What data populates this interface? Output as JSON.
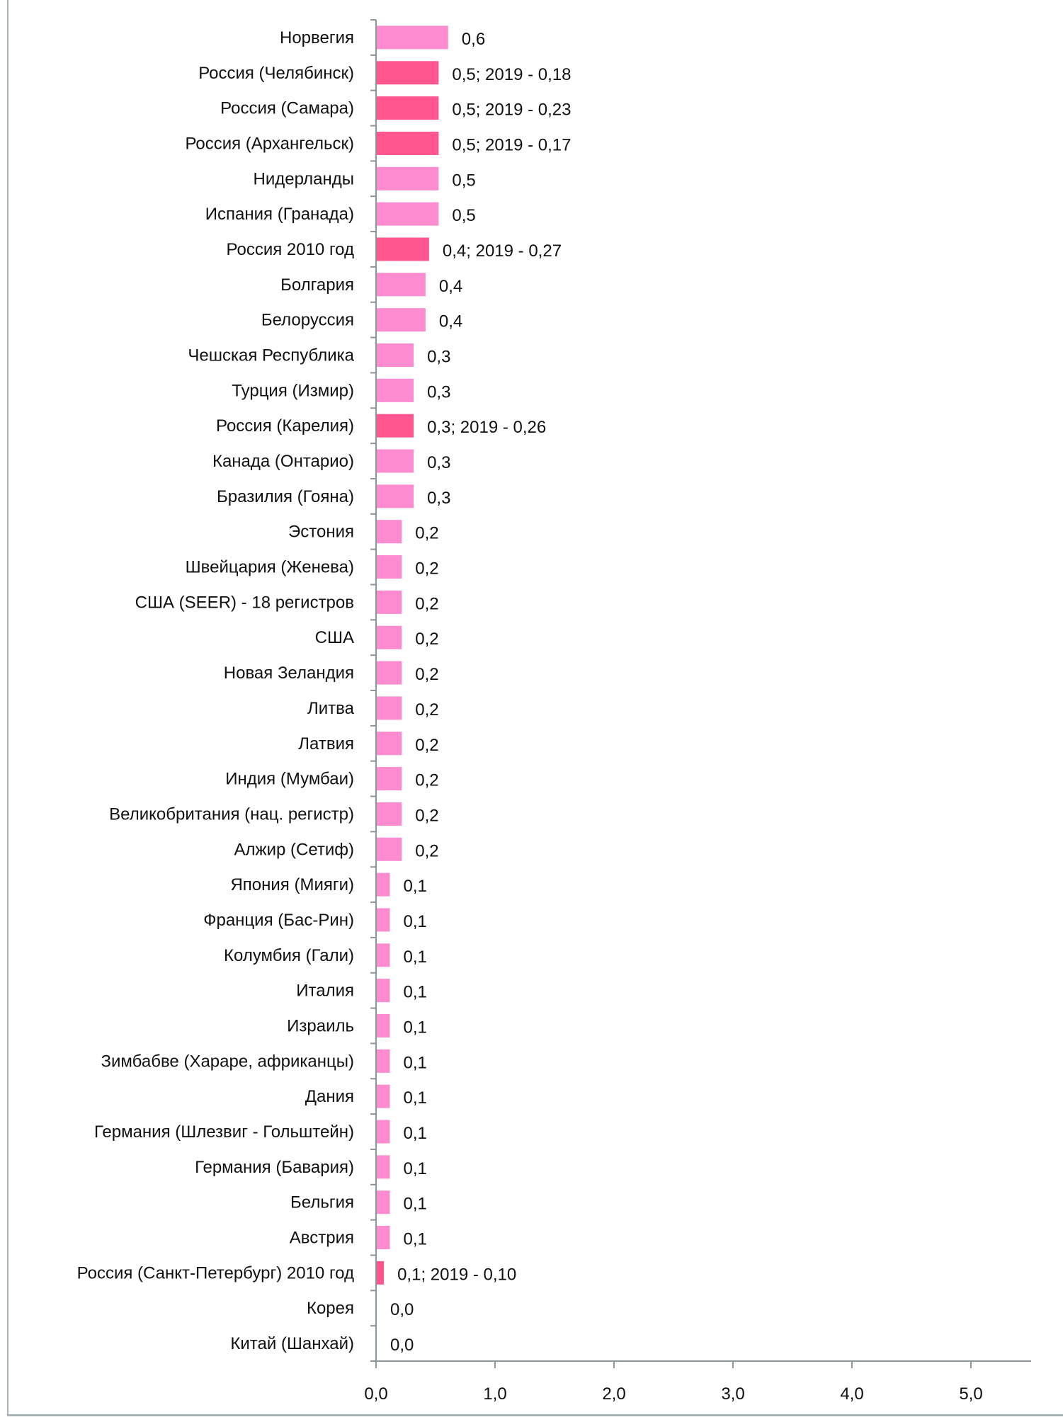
{
  "chart_data": {
    "type": "bar",
    "orientation": "horizontal",
    "title": "",
    "xlabel": "",
    "ylabel": "",
    "xlim": [
      0,
      5.5
    ],
    "xticks": [
      "0,0",
      "1,0",
      "2,0",
      "3,0",
      "4,0",
      "5,0"
    ],
    "grid": false,
    "colors": {
      "default": "#fd8bcf",
      "russia": "#ff5690"
    },
    "categories": [
      {
        "label": "Норвегия",
        "value": 0.6,
        "data_label": "0,6",
        "highlight": false
      },
      {
        "label": "Россия (Челябинск)",
        "value": 0.52,
        "data_label": "0,5; 2019 - 0,18",
        "highlight": true
      },
      {
        "label": "Россия (Самара)",
        "value": 0.52,
        "data_label": "0,5; 2019 - 0,23",
        "highlight": true
      },
      {
        "label": "Россия (Архангельск)",
        "value": 0.52,
        "data_label": "0,5; 2019 - 0,17",
        "highlight": true
      },
      {
        "label": "Нидерланды",
        "value": 0.52,
        "data_label": "0,5",
        "highlight": false
      },
      {
        "label": "Испания (Гранада)",
        "value": 0.52,
        "data_label": "0,5",
        "highlight": false
      },
      {
        "label": "Россия 2010 год",
        "value": 0.44,
        "data_label": "0,4; 2019 - 0,27",
        "highlight": true
      },
      {
        "label": "Болгария",
        "value": 0.41,
        "data_label": "0,4",
        "highlight": false
      },
      {
        "label": "Белоруссия",
        "value": 0.41,
        "data_label": "0,4",
        "highlight": false
      },
      {
        "label": "Чешская Республика",
        "value": 0.31,
        "data_label": "0,3",
        "highlight": false
      },
      {
        "label": "Турция (Измир)",
        "value": 0.31,
        "data_label": "0,3",
        "highlight": false
      },
      {
        "label": "Россия (Карелия)",
        "value": 0.31,
        "data_label": "0,3; 2019 - 0,26",
        "highlight": true
      },
      {
        "label": "Канада (Онтарио)",
        "value": 0.31,
        "data_label": "0,3",
        "highlight": false
      },
      {
        "label": "Бразилия (Гояна)",
        "value": 0.31,
        "data_label": "0,3",
        "highlight": false
      },
      {
        "label": "Эстония",
        "value": 0.21,
        "data_label": "0,2",
        "highlight": false
      },
      {
        "label": "Швейцария (Женева)",
        "value": 0.21,
        "data_label": "0,2",
        "highlight": false
      },
      {
        "label": "США (SEER) - 18 регистров",
        "value": 0.21,
        "data_label": "0,2",
        "highlight": false
      },
      {
        "label": "США",
        "value": 0.21,
        "data_label": "0,2",
        "highlight": false
      },
      {
        "label": "Новая Зеландия",
        "value": 0.21,
        "data_label": "0,2",
        "highlight": false
      },
      {
        "label": "Литва",
        "value": 0.21,
        "data_label": "0,2",
        "highlight": false
      },
      {
        "label": "Латвия",
        "value": 0.21,
        "data_label": "0,2",
        "highlight": false
      },
      {
        "label": "Индия (Мумбаи)",
        "value": 0.21,
        "data_label": "0,2",
        "highlight": false
      },
      {
        "label": "Великобритания (нац. регистр)",
        "value": 0.21,
        "data_label": "0,2",
        "highlight": false
      },
      {
        "label": "Алжир (Сетиф)",
        "value": 0.21,
        "data_label": "0,2",
        "highlight": false
      },
      {
        "label": "Япония (Мияги)",
        "value": 0.11,
        "data_label": "0,1",
        "highlight": false
      },
      {
        "label": "Франция (Бас-Рин)",
        "value": 0.11,
        "data_label": "0,1",
        "highlight": false
      },
      {
        "label": "Колумбия (Гали)",
        "value": 0.11,
        "data_label": "0,1",
        "highlight": false
      },
      {
        "label": "Италия",
        "value": 0.11,
        "data_label": "0,1",
        "highlight": false
      },
      {
        "label": "Израиль",
        "value": 0.11,
        "data_label": "0,1",
        "highlight": false
      },
      {
        "label": "Зимбабве (Хараре, африканцы)",
        "value": 0.11,
        "data_label": "0,1",
        "highlight": false
      },
      {
        "label": "Дания",
        "value": 0.11,
        "data_label": "0,1",
        "highlight": false
      },
      {
        "label": "Германия (Шлезвиг - Гольштейн)",
        "value": 0.11,
        "data_label": "0,1",
        "highlight": false
      },
      {
        "label": "Германия (Бавария)",
        "value": 0.11,
        "data_label": "0,1",
        "highlight": false
      },
      {
        "label": "Бельгия",
        "value": 0.11,
        "data_label": "0,1",
        "highlight": false
      },
      {
        "label": "Австрия",
        "value": 0.11,
        "data_label": "0,1",
        "highlight": false
      },
      {
        "label": "Россия (Санкт-Петербург) 2010 год",
        "value": 0.06,
        "data_label": "0,1; 2019 - 0,10",
        "highlight": true
      },
      {
        "label": "Корея",
        "value": 0.0,
        "data_label": "0,0",
        "highlight": false
      },
      {
        "label": "Китай (Шанхай)",
        "value": 0.0,
        "data_label": "0,0",
        "highlight": false
      }
    ]
  }
}
